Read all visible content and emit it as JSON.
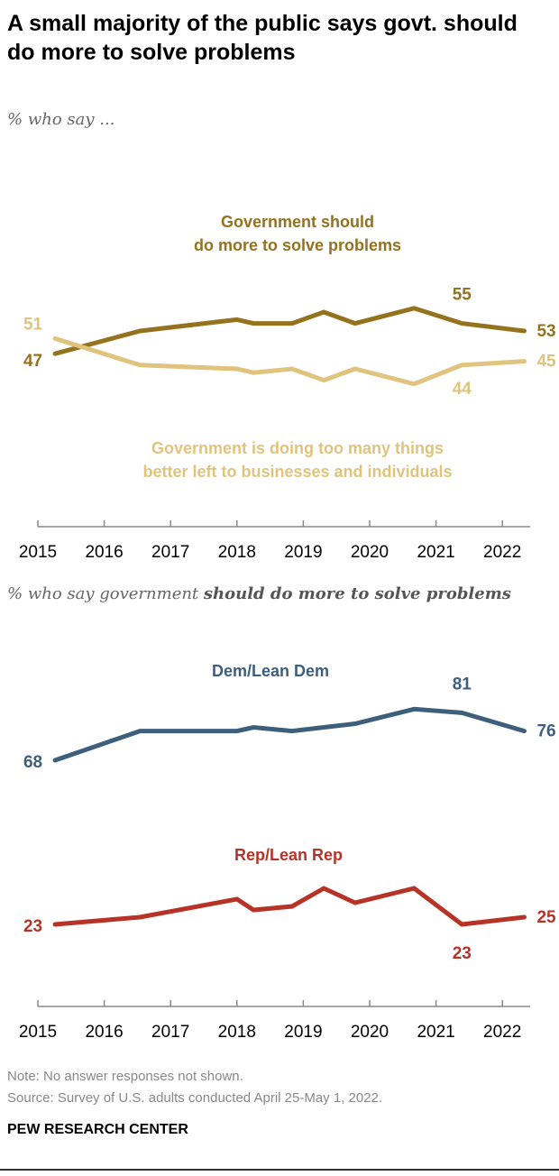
{
  "title": "A small majority of the public says govt. should do more to solve problems",
  "footer": {
    "note": "Note: No answer responses not shown.",
    "source": "Source: Survey of U.S. adults conducted April 25-May 1, 2022.",
    "brand": "PEW RESEARCH CENTER"
  },
  "chart_data": [
    {
      "type": "line",
      "subtitle": "% who say ...",
      "x_ticks": [
        "2015",
        "2016",
        "2017",
        "2018",
        "2019",
        "2020",
        "2021",
        "2022"
      ],
      "x": [
        2015.26,
        2016.54,
        2018.0,
        2018.25,
        2018.83,
        2019.31,
        2019.78,
        2020.67,
        2021.39,
        2022.33
      ],
      "series": [
        {
          "name": "Government should do more to solve problems",
          "name_lines": [
            "Government should",
            "do more to solve problems"
          ],
          "color": "#94721e",
          "values": [
            47,
            53,
            56,
            55,
            55,
            58,
            55,
            59,
            55,
            53
          ],
          "labels": [
            {
              "text": "47",
              "index": 0
            },
            {
              "text": "55",
              "index": 8
            },
            {
              "text": "53",
              "index": 9
            }
          ]
        },
        {
          "name": "Government is doing too many things better left to businesses and individuals",
          "name_lines": [
            "Government is doing too many things",
            "better left to businesses and individuals"
          ],
          "color": "#e0c47e",
          "values": [
            51,
            44,
            43,
            42,
            43,
            40,
            43,
            39,
            44,
            45
          ],
          "labels": [
            {
              "text": "51",
              "index": 0
            },
            {
              "text": "44",
              "index": 8
            },
            {
              "text": "45",
              "index": 9
            }
          ]
        }
      ]
    },
    {
      "type": "line",
      "subtitle_plain": "% who say government ",
      "subtitle_bold": "should do more to solve problems",
      "x_ticks": [
        "2015",
        "2016",
        "2017",
        "2018",
        "2019",
        "2020",
        "2021",
        "2022"
      ],
      "x": [
        2015.26,
        2016.54,
        2018.0,
        2018.25,
        2018.83,
        2019.31,
        2019.78,
        2020.67,
        2021.39,
        2022.33
      ],
      "series": [
        {
          "name": "Dem/Lean Dem",
          "color": "#3d5f7c",
          "values": [
            68,
            76,
            76,
            77,
            76,
            77,
            78,
            82,
            81,
            76
          ],
          "labels": [
            {
              "text": "68",
              "index": 0
            },
            {
              "text": "81",
              "index": 8
            },
            {
              "text": "76",
              "index": 9
            }
          ]
        },
        {
          "name": "Rep/Lean Rep",
          "color": "#b83327",
          "values": [
            23,
            25,
            30,
            27,
            28,
            33,
            29,
            33,
            23,
            25
          ],
          "labels": [
            {
              "text": "23",
              "index": 0
            },
            {
              "text": "23",
              "index": 8
            },
            {
              "text": "25",
              "index": 9
            }
          ]
        }
      ]
    }
  ]
}
